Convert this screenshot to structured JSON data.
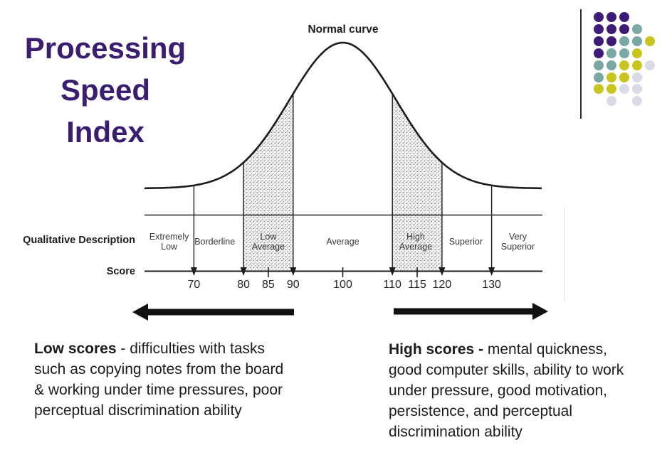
{
  "slide": {
    "title": "Processing\nSpeed\nIndex",
    "title_color": "#3b1d6f"
  },
  "chart_data": {
    "type": "area",
    "title": "Normal curve",
    "description": "Normal (bell) curve of Processing Speed Index standard scores, mean 100, SD 15; shaded bands for Low Average (80-90) and High Average (110-120)",
    "row_label": "Qualitative Description",
    "axis_label": "Score",
    "score_ticks": [
      70,
      80,
      85,
      90,
      100,
      110,
      115,
      120,
      130
    ],
    "boundary_scores": [
      70,
      80,
      90,
      110,
      120,
      130
    ],
    "minor_tick_scores": [
      85,
      100,
      115
    ],
    "xlim": [
      60,
      140
    ],
    "regions": [
      {
        "label": "Extremely\nLow",
        "from": null,
        "to": 70,
        "center": 65,
        "shaded": false
      },
      {
        "label": "Borderline",
        "from": 70,
        "to": 80,
        "center": 74.2,
        "shaded": false
      },
      {
        "label": "Low\nAverage",
        "from": 80,
        "to": 90,
        "center": 85,
        "shaded": true
      },
      {
        "label": "Average",
        "from": 90,
        "to": 110,
        "center": 100,
        "shaded": false
      },
      {
        "label": "High\nAverage",
        "from": 110,
        "to": 120,
        "center": 114.7,
        "shaded": true
      },
      {
        "label": "Superior",
        "from": 120,
        "to": 130,
        "center": 124.8,
        "shaded": false
      },
      {
        "label": "Very\nSuperior",
        "from": 130,
        "to": null,
        "center": 135.3,
        "shaded": false
      }
    ]
  },
  "notes": {
    "low": {
      "heading": "Low scores",
      "l1_rest": " - difficulties with tasks",
      "l2": "such as copying notes from the board",
      "l3": "& working under time pressures, poor",
      "l4": "perceptual discrimination ability"
    },
    "high": {
      "heading": "High scores -",
      "l1_rest": " mental quickness,",
      "l2": "good computer skills, ability to work",
      "l3": "under pressure, good motivation,",
      "l4": "persistence, and perceptual",
      "l5": "discrimination ability"
    }
  },
  "decoration": {
    "dot_colors": {
      "purple": "#3e1b77",
      "teal": "#79a8a4",
      "yellow": "#c9c51f",
      "lavender": "#dadae8"
    },
    "rows": [
      [
        "purple",
        "purple",
        "purple"
      ],
      [
        "purple",
        "purple",
        "purple",
        "teal"
      ],
      [
        "purple",
        "purple",
        "teal",
        "teal",
        "yellow"
      ],
      [
        "purple",
        "teal",
        "teal",
        "yellow"
      ],
      [
        "teal",
        "teal",
        "yellow",
        "yellow",
        "lavender"
      ],
      [
        "teal",
        "yellow",
        "yellow",
        "lavender"
      ],
      [
        "yellow",
        "yellow",
        "lavender",
        "lavender"
      ],
      [
        null,
        "lavender",
        null,
        "lavender"
      ]
    ]
  }
}
